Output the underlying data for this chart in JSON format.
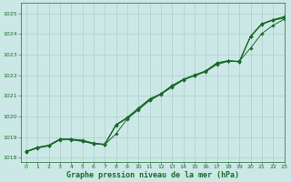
{
  "xlabel": "Graphe pression niveau de la mer (hPa)",
  "xlim": [
    -0.5,
    23
  ],
  "ylim": [
    1017.8,
    1025.5
  ],
  "yticks": [
    1018,
    1019,
    1020,
    1021,
    1022,
    1023,
    1024,
    1025
  ],
  "xticks": [
    0,
    1,
    2,
    3,
    4,
    5,
    6,
    7,
    8,
    9,
    10,
    11,
    12,
    13,
    14,
    15,
    16,
    17,
    18,
    19,
    20,
    21,
    22,
    23
  ],
  "bg_color": "#cce8e6",
  "grid_color": "#aacfcc",
  "line_color": "#1a6b2a",
  "line1": [
    1018.3,
    1018.5,
    1018.6,
    1018.9,
    1018.9,
    1018.85,
    1018.7,
    1018.65,
    1019.6,
    1019.95,
    1020.4,
    1020.85,
    1021.1,
    1021.5,
    1021.8,
    1022.0,
    1022.2,
    1022.6,
    1022.7,
    1022.65,
    1023.9,
    1024.5,
    1024.7,
    1024.85
  ],
  "line2": [
    1018.28,
    1018.48,
    1018.58,
    1018.88,
    1018.86,
    1018.79,
    1018.67,
    1018.63,
    1019.15,
    1019.88,
    1020.32,
    1020.77,
    1021.07,
    1021.42,
    1021.77,
    1021.97,
    1022.17,
    1022.52,
    1022.67,
    1022.68,
    1023.32,
    1024.02,
    1024.42,
    1024.72
  ],
  "line3": [
    1018.28,
    1018.46,
    1018.56,
    1018.86,
    1018.87,
    1018.8,
    1018.68,
    1018.62,
    1019.57,
    1019.91,
    1020.37,
    1020.8,
    1021.08,
    1021.47,
    1021.77,
    1021.99,
    1022.19,
    1022.57,
    1022.69,
    1022.66,
    1023.87,
    1024.47,
    1024.67,
    1024.77
  ],
  "line4": [
    1018.3,
    1018.49,
    1018.59,
    1018.89,
    1018.88,
    1018.82,
    1018.69,
    1018.64,
    1019.58,
    1019.93,
    1020.39,
    1020.83,
    1021.09,
    1021.49,
    1021.79,
    1022.01,
    1022.21,
    1022.59,
    1022.71,
    1022.67,
    1023.89,
    1024.49,
    1024.69,
    1024.8
  ]
}
